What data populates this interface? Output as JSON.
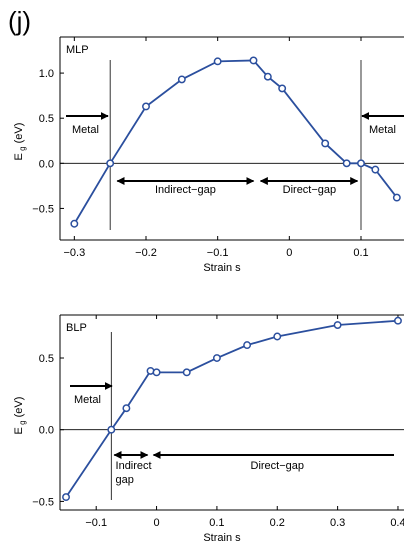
{
  "panel_label": "(j)",
  "colors": {
    "series": "#2b4f9e",
    "axis": "#000000",
    "annotation": "#000000"
  },
  "chart_data": [
    {
      "type": "line",
      "id": "top",
      "inset_label": "MLP",
      "xlabel": "Strain  s",
      "ylabel": "E g (eV)",
      "ylabel_main": "E",
      "ylabel_sub": "g",
      "ylabel_unit": "(eV)",
      "xlim": [
        -0.32,
        0.16
      ],
      "ylim": [
        -0.85,
        1.4
      ],
      "xticks": [
        -0.3,
        -0.2,
        -0.1,
        0,
        0.1
      ],
      "xtick_labels": [
        "−0.3",
        "−0.2",
        "−0.1",
        "0",
        "0.1"
      ],
      "yticks": [
        -0.5,
        0,
        0.5,
        1.0
      ],
      "ytick_labels": [
        "−0.5",
        "0.0",
        "0.5",
        "1.0"
      ],
      "zero_line": true,
      "vlines": [
        -0.25,
        0.1
      ],
      "series": [
        {
          "x": [
            -0.3,
            -0.25,
            -0.2,
            -0.15,
            -0.1,
            -0.05,
            -0.03,
            -0.01,
            0.05,
            0.08,
            0.1,
            0.12,
            0.15
          ],
          "y": [
            -0.67,
            0.0,
            0.63,
            0.93,
            1.13,
            1.14,
            0.96,
            0.83,
            0.22,
            0.0,
            0.0,
            -0.07,
            -0.38
          ]
        }
      ],
      "annotations": {
        "left_label": "Metal",
        "right_label": "Metal",
        "indirect_label": "Indirect−gap",
        "direct_label": "Direct−gap"
      }
    },
    {
      "type": "line",
      "id": "bottom",
      "inset_label": "BLP",
      "xlabel": "Strain  s",
      "ylabel": "E g (eV)",
      "ylabel_main": "E",
      "ylabel_sub": "g",
      "ylabel_unit": "(eV)",
      "xlim": [
        -0.16,
        0.41
      ],
      "ylim": [
        -0.56,
        0.8
      ],
      "xticks": [
        -0.1,
        0,
        0.1,
        0.2,
        0.3,
        0.4
      ],
      "xtick_labels": [
        "−0.1",
        "0",
        "0.1",
        "0.2",
        "0.3",
        "0.4"
      ],
      "yticks": [
        -0.5,
        0,
        0.5
      ],
      "ytick_labels": [
        "−0.5",
        "0.0",
        "0.5"
      ],
      "zero_line": true,
      "vlines": [
        -0.075
      ],
      "series": [
        {
          "x": [
            -0.15,
            -0.075,
            -0.05,
            -0.01,
            0.0,
            0.05,
            0.1,
            0.15,
            0.2,
            0.3,
            0.4
          ],
          "y": [
            -0.47,
            0.0,
            0.15,
            0.41,
            0.4,
            0.4,
            0.5,
            0.59,
            0.65,
            0.73,
            0.76
          ]
        }
      ],
      "annotations": {
        "metal_label": "Metal",
        "indirect_line1": "Indirect",
        "indirect_line2": "gap",
        "direct_label": "Direct−gap"
      }
    }
  ]
}
